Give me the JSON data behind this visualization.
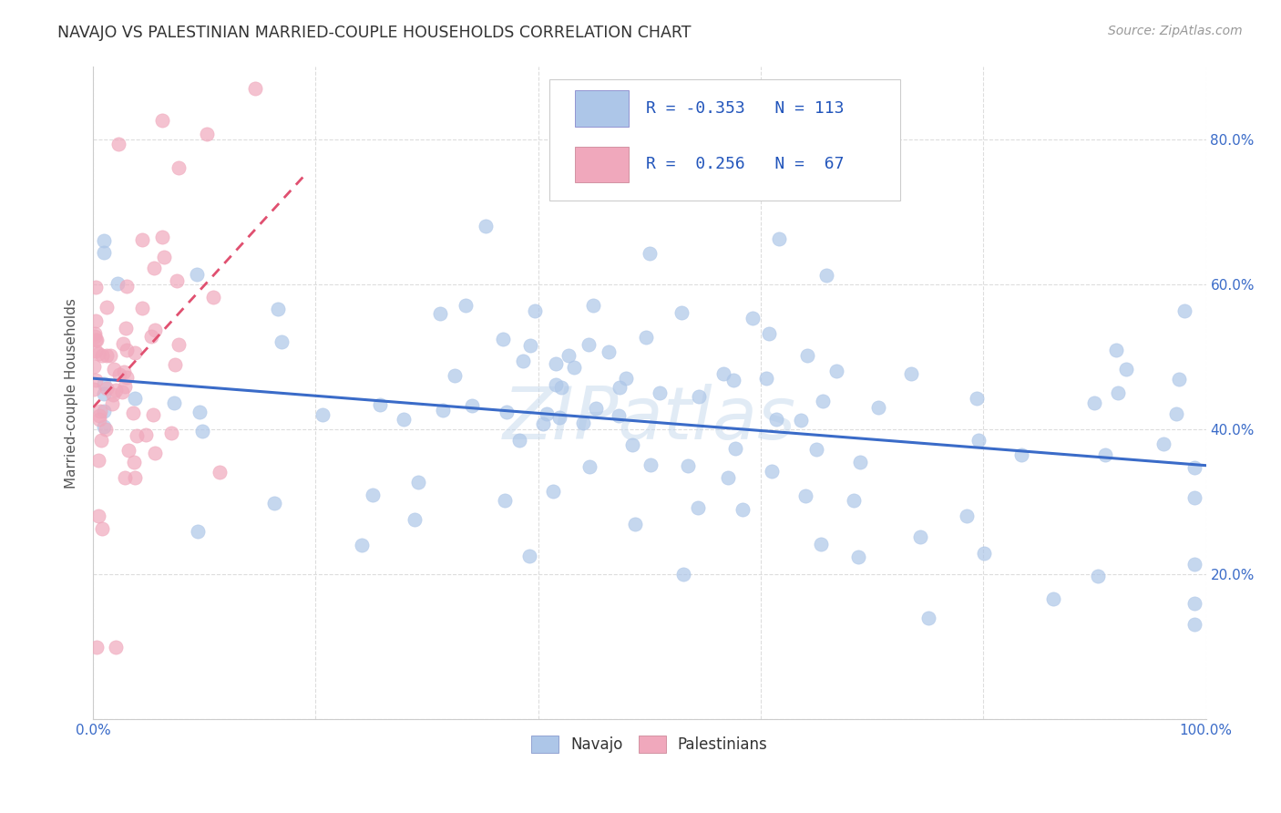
{
  "title": "NAVAJO VS PALESTINIAN MARRIED-COUPLE HOUSEHOLDS CORRELATION CHART",
  "source": "Source: ZipAtlas.com",
  "ylabel": "Married-couple Households",
  "xlim": [
    0.0,
    1.0
  ],
  "ylim": [
    0.0,
    0.9
  ],
  "xtick_vals": [
    0.0,
    0.2,
    0.4,
    0.6,
    0.8,
    1.0
  ],
  "ytick_vals": [
    0.0,
    0.2,
    0.4,
    0.6,
    0.8
  ],
  "xticklabels": [
    "0.0%",
    "",
    "",
    "",
    "",
    "100.0%"
  ],
  "yticklabels_right": [
    "",
    "20.0%",
    "40.0%",
    "60.0%",
    "80.0%"
  ],
  "navajo_R": -0.353,
  "navajo_N": 113,
  "palestinian_R": 0.256,
  "palestinian_N": 67,
  "navajo_color": "#adc6e8",
  "palestinian_color": "#f0a8bc",
  "navajo_line_color": "#3a6bc8",
  "palestinian_line_color": "#e05070",
  "watermark": "ZIPatlas",
  "background_color": "#ffffff",
  "grid_color": "#dddddd",
  "nav_seed": 42,
  "pal_seed": 17
}
